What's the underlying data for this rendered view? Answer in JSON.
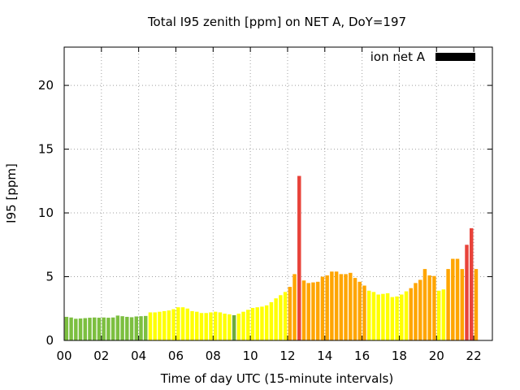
{
  "chart_data": {
    "type": "bar",
    "title": "Total I95 zenith [ppm] on NET A, DoY=197",
    "xlabel": "Time of day UTC (15-minute intervals)",
    "ylabel": "I95 [ppm]",
    "xlim": [
      0,
      23.0
    ],
    "ylim": [
      0,
      23
    ],
    "x_ticks": [
      0,
      2,
      4,
      6,
      8,
      10,
      12,
      14,
      16,
      18,
      20,
      22
    ],
    "x_tick_labels": [
      "00",
      "02",
      "04",
      "06",
      "08",
      "10",
      "12",
      "14",
      "16",
      "18",
      "20",
      "22"
    ],
    "y_ticks": [
      0,
      5,
      10,
      15,
      20
    ],
    "y_tick_labels": [
      "0",
      "5",
      "10",
      "15",
      "20"
    ],
    "grid": true,
    "legend": {
      "placement": "top-right",
      "label": "ion net A",
      "color": "#000000"
    },
    "bar_interval_hours": 0.25,
    "x_start": 0,
    "color_levels": [
      {
        "max": 2.0,
        "color": "#7cbf40"
      },
      {
        "max": 4.0,
        "color": "#ffff00"
      },
      {
        "max": 7.0,
        "color": "#ffa500"
      },
      {
        "max": 100,
        "color": "#e8433a"
      }
    ],
    "values": [
      1.85,
      1.8,
      1.7,
      1.72,
      1.75,
      1.78,
      1.8,
      1.78,
      1.8,
      1.78,
      1.8,
      1.95,
      1.9,
      1.85,
      1.82,
      1.88,
      1.9,
      1.92,
      2.2,
      2.2,
      2.25,
      2.3,
      2.35,
      2.45,
      2.6,
      2.6,
      2.5,
      2.3,
      2.25,
      2.15,
      2.15,
      2.2,
      2.25,
      2.2,
      2.1,
      2.05,
      1.98,
      2.1,
      2.25,
      2.4,
      2.55,
      2.6,
      2.65,
      2.75,
      3.0,
      3.3,
      3.55,
      3.8,
      4.2,
      5.2,
      12.9,
      4.7,
      4.5,
      4.55,
      4.6,
      5.0,
      5.1,
      5.4,
      5.4,
      5.2,
      5.2,
      5.3,
      4.9,
      4.6,
      4.3,
      3.9,
      3.8,
      3.6,
      3.65,
      3.7,
      3.4,
      3.45,
      3.6,
      3.85,
      4.1,
      4.5,
      4.75,
      5.6,
      5.1,
      5.05,
      3.9,
      4.0,
      5.6,
      6.4,
      6.4,
      5.6,
      7.5,
      8.8,
      5.6
    ]
  }
}
